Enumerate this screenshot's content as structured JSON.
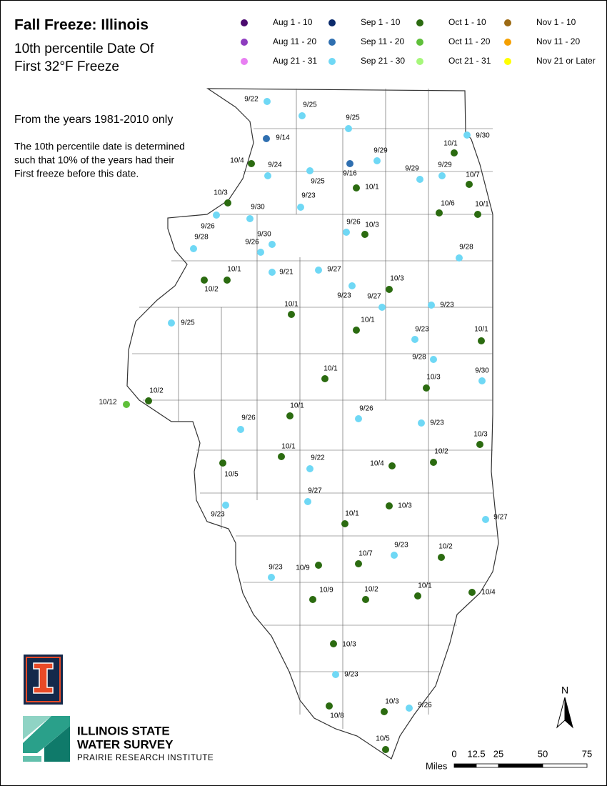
{
  "header": {
    "title": "Fall Freeze: Illinois",
    "subtitle": [
      "10th percentile Date Of",
      "First 32°F Freeze"
    ],
    "period": "From the years 1981-2010 only",
    "note": [
      "The 10th percentile date is determined",
      "such that 10% of the years had their",
      "First freeze before this date."
    ]
  },
  "legend": [
    {
      "label": "Aug 1 - 10",
      "color": "#4b0a6e"
    },
    {
      "label": "Aug 11 - 20",
      "color": "#8e3dbf"
    },
    {
      "label": "Aug 21 - 31",
      "color": "#e87ff2"
    },
    {
      "label": "Sep 1 - 10",
      "color": "#0a2a6b"
    },
    {
      "label": "Sep 11 - 20",
      "color": "#2f6fb0"
    },
    {
      "label": "Sep 21 - 30",
      "color": "#6fd8f5"
    },
    {
      "label": "Oct 1 - 10",
      "color": "#2b6b10"
    },
    {
      "label": "Oct 11 - 20",
      "color": "#5fbf3a"
    },
    {
      "label": "Oct 21 - 31",
      "color": "#a6f77a"
    },
    {
      "label": "Nov 1 - 10",
      "color": "#9c6a14"
    },
    {
      "label": "Nov 11 - 20",
      "color": "#f5a000"
    },
    {
      "label": "Nov 21 or Later",
      "color": "#ffff00"
    }
  ],
  "stations": [
    {
      "label": "9/22",
      "color": "#6fd8f5"
    },
    {
      "label": "9/25",
      "color": "#6fd8f5"
    },
    {
      "label": "9/25",
      "color": "#6fd8f5"
    },
    {
      "label": "9/14",
      "color": "#2f6fb0"
    },
    {
      "label": "9/30",
      "color": "#6fd8f5"
    },
    {
      "label": "10/1",
      "color": "#2b6b10"
    },
    {
      "label": "9/29",
      "color": "#6fd8f5"
    },
    {
      "label": "10/4",
      "color": "#2b6b10"
    },
    {
      "label": "9/24",
      "color": "#6fd8f5"
    },
    {
      "label": "9/25",
      "color": "#6fd8f5"
    },
    {
      "label": "9/16",
      "color": "#2f6fb0"
    },
    {
      "label": "9/29",
      "color": "#6fd8f5"
    },
    {
      "label": "9/29",
      "color": "#6fd8f5"
    },
    {
      "label": "10/7",
      "color": "#2b6b10"
    },
    {
      "label": "10/1",
      "color": "#2b6b10"
    },
    {
      "label": "9/23",
      "color": "#6fd8f5"
    },
    {
      "label": "10/3",
      "color": "#2b6b10"
    },
    {
      "label": "10/6",
      "color": "#2b6b10"
    },
    {
      "label": "10/1",
      "color": "#2b6b10"
    },
    {
      "label": "9/26",
      "color": "#6fd8f5"
    },
    {
      "label": "9/30",
      "color": "#6fd8f5"
    },
    {
      "label": "9/26",
      "color": "#6fd8f5"
    },
    {
      "label": "10/3",
      "color": "#2b6b10"
    },
    {
      "label": "9/28",
      "color": "#6fd8f5"
    },
    {
      "label": "9/30",
      "color": "#6fd8f5"
    },
    {
      "label": "9/26",
      "color": "#6fd8f5"
    },
    {
      "label": "9/28",
      "color": "#6fd8f5"
    },
    {
      "label": "10/1",
      "color": "#2b6b10"
    },
    {
      "label": "10/2",
      "color": "#2b6b10"
    },
    {
      "label": "9/21",
      "color": "#6fd8f5"
    },
    {
      "label": "9/27",
      "color": "#6fd8f5"
    },
    {
      "label": "10/3",
      "color": "#2b6b10"
    },
    {
      "label": "9/23",
      "color": "#6fd8f5"
    },
    {
      "label": "9/27",
      "color": "#6fd8f5"
    },
    {
      "label": "9/23",
      "color": "#6fd8f5"
    },
    {
      "label": "10/1",
      "color": "#2b6b10"
    },
    {
      "label": "10/1",
      "color": "#2b6b10"
    },
    {
      "label": "9/25",
      "color": "#6fd8f5"
    },
    {
      "label": "9/23",
      "color": "#6fd8f5"
    },
    {
      "label": "10/1",
      "color": "#2b6b10"
    },
    {
      "label": "9/28",
      "color": "#6fd8f5"
    },
    {
      "label": "10/1",
      "color": "#2b6b10"
    },
    {
      "label": "10/3",
      "color": "#2b6b10"
    },
    {
      "label": "9/30",
      "color": "#6fd8f5"
    },
    {
      "label": "10/2",
      "color": "#2b6b10"
    },
    {
      "label": "10/12",
      "color": "#5fbf3a"
    },
    {
      "label": "10/1",
      "color": "#2b6b10"
    },
    {
      "label": "9/26",
      "color": "#6fd8f5"
    },
    {
      "label": "9/26",
      "color": "#6fd8f5"
    },
    {
      "label": "9/23",
      "color": "#6fd8f5"
    },
    {
      "label": "10/3",
      "color": "#2b6b10"
    },
    {
      "label": "10/1",
      "color": "#2b6b10"
    },
    {
      "label": "10/2",
      "color": "#2b6b10"
    },
    {
      "label": "10/4",
      "color": "#2b6b10"
    },
    {
      "label": "9/22",
      "color": "#6fd8f5"
    },
    {
      "label": "10/5",
      "color": "#2b6b10"
    },
    {
      "label": "9/27",
      "color": "#6fd8f5"
    },
    {
      "label": "10/3",
      "color": "#2b6b10"
    },
    {
      "label": "9/23",
      "color": "#6fd8f5"
    },
    {
      "label": "9/27",
      "color": "#6fd8f5"
    },
    {
      "label": "10/1",
      "color": "#2b6b10"
    },
    {
      "label": "10/7",
      "color": "#2b6b10"
    },
    {
      "label": "9/23",
      "color": "#6fd8f5"
    },
    {
      "label": "10/2",
      "color": "#2b6b10"
    },
    {
      "label": "10/9",
      "color": "#2b6b10"
    },
    {
      "label": "9/23",
      "color": "#6fd8f5"
    },
    {
      "label": "10/9",
      "color": "#2b6b10"
    },
    {
      "label": "10/2",
      "color": "#2b6b10"
    },
    {
      "label": "10/1",
      "color": "#2b6b10"
    },
    {
      "label": "10/4",
      "color": "#2b6b10"
    },
    {
      "label": "10/3",
      "color": "#2b6b10"
    },
    {
      "label": "9/23",
      "color": "#6fd8f5"
    },
    {
      "label": "10/3",
      "color": "#2b6b10"
    },
    {
      "label": "9/26",
      "color": "#6fd8f5"
    },
    {
      "label": "10/8",
      "color": "#2b6b10"
    },
    {
      "label": "10/5",
      "color": "#2b6b10"
    }
  ],
  "scale": {
    "unit": "Miles",
    "ticks": [
      0,
      12.5,
      25,
      50,
      75
    ]
  },
  "north": "N",
  "logo": {
    "lines": [
      "ILLINOIS STATE",
      "WATER SURVEY"
    ],
    "org": "PRAIRIE RESEARCH INSTITUTE"
  }
}
